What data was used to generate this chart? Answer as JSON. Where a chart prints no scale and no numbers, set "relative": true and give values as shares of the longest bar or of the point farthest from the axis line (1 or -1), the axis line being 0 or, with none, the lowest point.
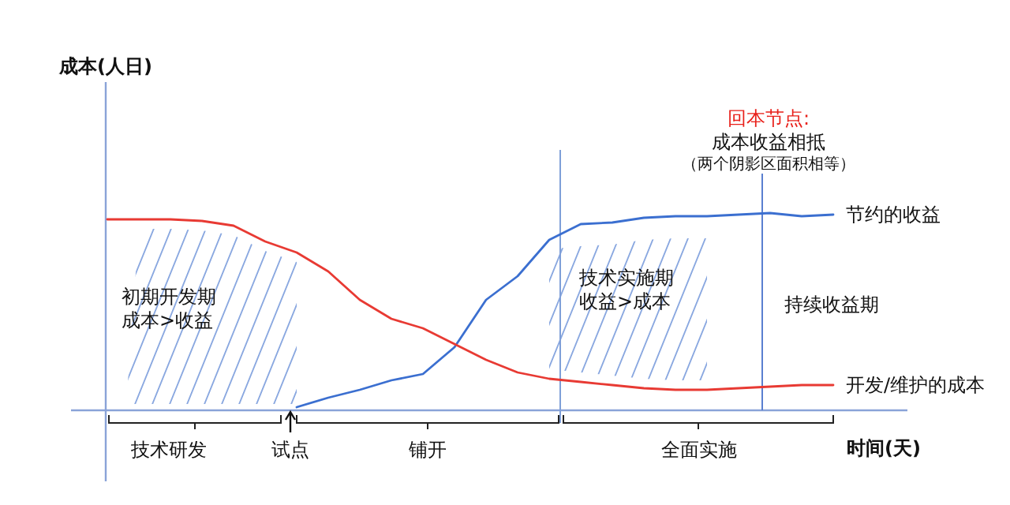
{
  "chart_data": {
    "type": "line",
    "relative": true,
    "xlabel": "时间(天)",
    "categories": [
      null,
      null,
      null,
      null,
      null,
      null,
      null,
      null,
      null,
      null,
      null,
      null,
      null,
      null,
      null,
      null,
      null,
      null,
      null,
      null,
      null,
      null,
      null,
      null
    ],
    "series": [
      {
        "name": "节约的收益",
        "color": "#3b6fd0",
        "values": [
          null,
          null,
          null,
          null,
          null,
          null,
          0.016,
          0.064,
          0.104,
          0.152,
          0.184,
          0.32,
          0.56,
          0.68,
          0.864,
          0.944,
          0.952,
          0.976,
          0.984,
          0.984,
          0.992,
          1,
          0.984,
          0.992
        ]
      },
      {
        "name": "开发/维护的成本",
        "color": "#e83a33",
        "values": [
          0.968,
          0.968,
          0.968,
          0.96,
          0.936,
          0.856,
          0.8,
          0.704,
          0.56,
          0.464,
          0.416,
          0.336,
          0.256,
          0.192,
          0.16,
          0.144,
          0.128,
          0.112,
          0.104,
          0.104,
          0.112,
          0.12,
          0.128,
          0.128
        ]
      }
    ],
    "annotations": [
      "成本(人日)",
      "初期开发期",
      "成本>收益",
      "技术实施期",
      "收益>成本",
      "持续收益期",
      "技术研发",
      "试点",
      "铺开",
      "全面实施",
      "回本节点:",
      "成本收益相抵",
      "（两个阴影区面积相等）"
    ]
  }
}
